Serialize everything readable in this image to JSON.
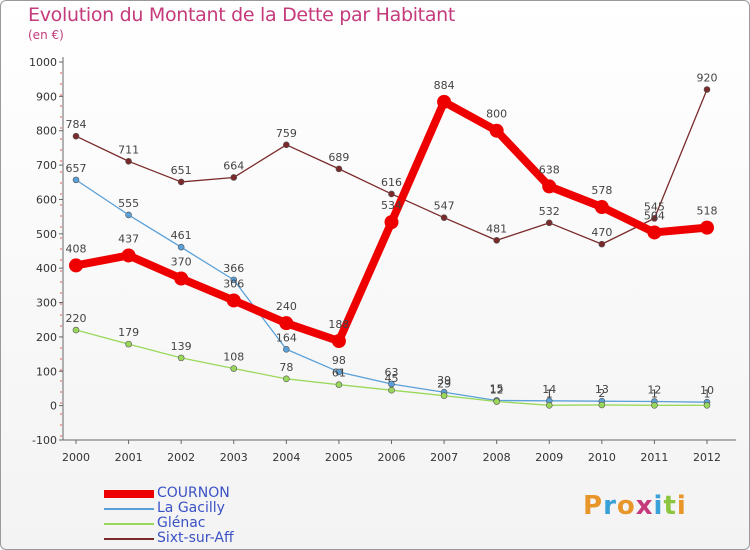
{
  "title": "Evolution du Montant de la Dette par Habitant",
  "subtitle": "(en €)",
  "logo": {
    "letters": [
      "P",
      "r",
      "o",
      "x",
      "i",
      "t",
      "i"
    ],
    "colors": [
      "#e8962a",
      "#3aa0d8",
      "#e8962a",
      "#c43a7a",
      "#3aa0d8",
      "#8cc63f",
      "#e8962a"
    ]
  },
  "chart_data": {
    "type": "line",
    "x": [
      2000,
      2001,
      2002,
      2003,
      2004,
      2005,
      2006,
      2007,
      2008,
      2009,
      2010,
      2011,
      2012
    ],
    "ylim": [
      -100,
      1000
    ],
    "yticks": [
      -100,
      0,
      100,
      200,
      300,
      400,
      500,
      600,
      700,
      800,
      900,
      1000
    ],
    "grid": false,
    "legend": "bottom-left",
    "series": [
      {
        "name": "COURNON",
        "color": "#ee0000",
        "width": 8,
        "marker": 7,
        "values": [
          408,
          437,
          370,
          306,
          240,
          188,
          534,
          884,
          800,
          638,
          578,
          504,
          518
        ]
      },
      {
        "name": "La Gacilly",
        "color": "#5aa0d8",
        "width": 1.3,
        "marker": 3,
        "values": [
          657,
          555,
          461,
          366,
          164,
          98,
          63,
          39,
          15,
          14,
          13,
          12,
          10
        ]
      },
      {
        "name": "Glénac",
        "color": "#9ad85c",
        "width": 1.3,
        "marker": 3,
        "values": [
          220,
          179,
          139,
          108,
          78,
          61,
          45,
          29,
          12,
          1,
          2,
          1,
          1
        ]
      },
      {
        "name": "Sixt-sur-Aff",
        "color": "#7a2a2a",
        "width": 1.3,
        "marker": 3,
        "values": [
          784,
          711,
          651,
          664,
          759,
          689,
          616,
          547,
          481,
          532,
          470,
          545,
          920
        ]
      }
    ]
  }
}
